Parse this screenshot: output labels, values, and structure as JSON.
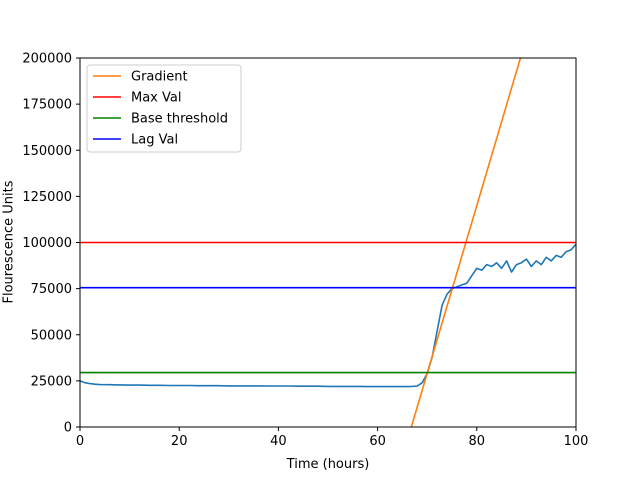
{
  "chart_data": {
    "type": "line",
    "xlabel": "Time (hours)",
    "ylabel": "Flourescence Units",
    "xlim": [
      0,
      100
    ],
    "ylim": [
      0,
      200000
    ],
    "xticks": [
      0,
      20,
      40,
      60,
      80,
      100
    ],
    "yticks": [
      0,
      25000,
      50000,
      75000,
      100000,
      125000,
      150000,
      175000,
      200000
    ],
    "grid": false,
    "legend_position": "top-left",
    "series": [
      {
        "name": "",
        "kind": "data",
        "color": "#1f77b4",
        "x": [
          0,
          1,
          2,
          3,
          4,
          6,
          8,
          10,
          12,
          14,
          16,
          18,
          20,
          22,
          24,
          26,
          28,
          30,
          32,
          34,
          36,
          38,
          40,
          42,
          44,
          46,
          48,
          50,
          52,
          54,
          56,
          58,
          60,
          62,
          64,
          66,
          67,
          68,
          69,
          70,
          71,
          72,
          73,
          74,
          75,
          76,
          77,
          78,
          79,
          80,
          81,
          82,
          83,
          84,
          85,
          86,
          87,
          88,
          89,
          90,
          91,
          92,
          93,
          94,
          95,
          96,
          97,
          98,
          99,
          100
        ],
        "y": [
          25000,
          24000,
          23500,
          23200,
          23000,
          22900,
          22800,
          22700,
          22700,
          22600,
          22600,
          22500,
          22500,
          22500,
          22400,
          22400,
          22400,
          22300,
          22300,
          22300,
          22300,
          22200,
          22200,
          22200,
          22100,
          22100,
          22100,
          22000,
          22000,
          22000,
          22000,
          21900,
          21900,
          21900,
          21900,
          21900,
          22000,
          22200,
          24000,
          29000,
          38000,
          52000,
          66000,
          72000,
          75000,
          76000,
          77000,
          78000,
          82000,
          86000,
          85000,
          88000,
          87000,
          89000,
          86000,
          90000,
          84000,
          88000,
          89000,
          91000,
          87000,
          90000,
          88000,
          92000,
          90000,
          93000,
          92000,
          95000,
          96000,
          99000
        ]
      },
      {
        "name": "Gradient",
        "kind": "line",
        "color": "#ff7f0e",
        "x": [
          66.8,
          88.8
        ],
        "y": [
          0,
          200000
        ]
      },
      {
        "name": "Max Val",
        "kind": "hline",
        "color": "#ff0000",
        "y": 100000
      },
      {
        "name": "Base threshold",
        "kind": "hline",
        "color": "#008000",
        "y": 29500
      },
      {
        "name": "Lag Val",
        "kind": "hline",
        "color": "#0000ff",
        "y": 75500
      }
    ]
  }
}
